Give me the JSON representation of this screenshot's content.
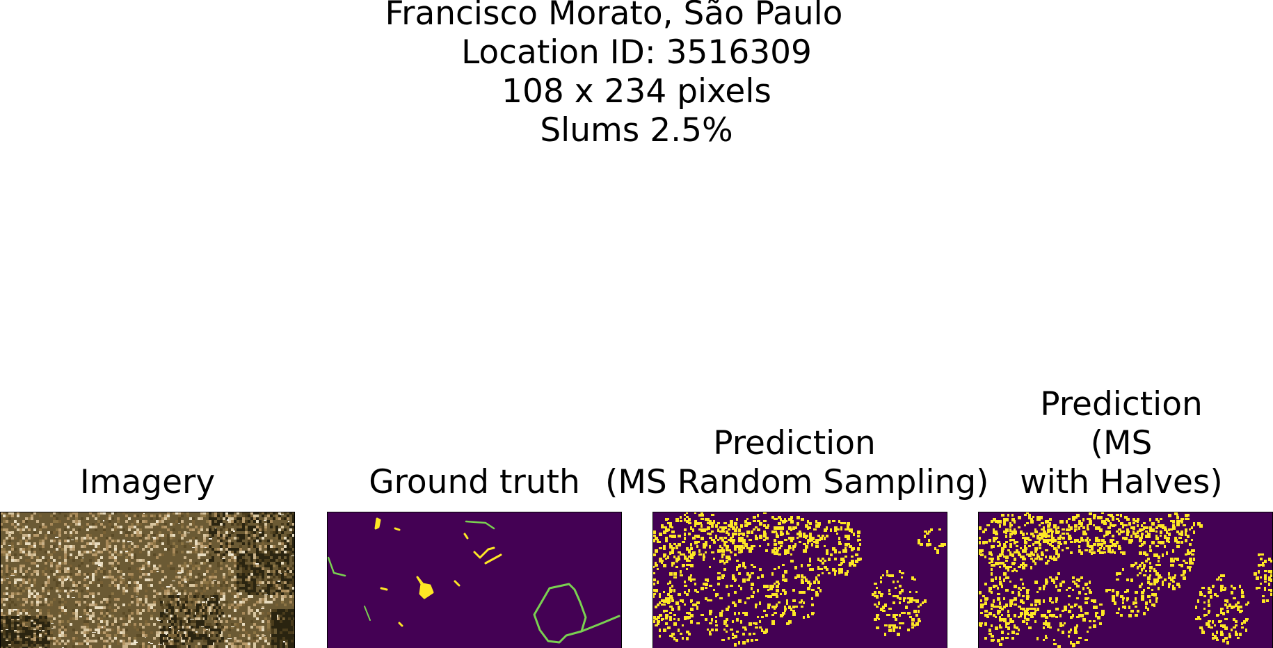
{
  "figure": {
    "title_lines": [
      "Francisco Morato, São Paulo",
      "Location ID: 3516309",
      "108 x 234 pixels",
      "Slums 2.5%"
    ],
    "panels": [
      {
        "title_lines": [
          "Imagery"
        ],
        "kind": "satellite-imagery"
      },
      {
        "title_lines": [
          "Ground truth"
        ],
        "kind": "mask"
      },
      {
        "title_lines": [
          "Prediction",
          "(MS Random Sampling)"
        ],
        "kind": "mask"
      },
      {
        "title_lines": [
          "Prediction",
          "(MS",
          "with Halves)"
        ],
        "kind": "mask"
      }
    ]
  },
  "colors": {
    "mask_background": "#440154",
    "mask_foreground": "#fde725",
    "mask_edge": "#7ad151",
    "imagery_light": "#b89a6a",
    "imagery_dark": "#2a2410"
  }
}
